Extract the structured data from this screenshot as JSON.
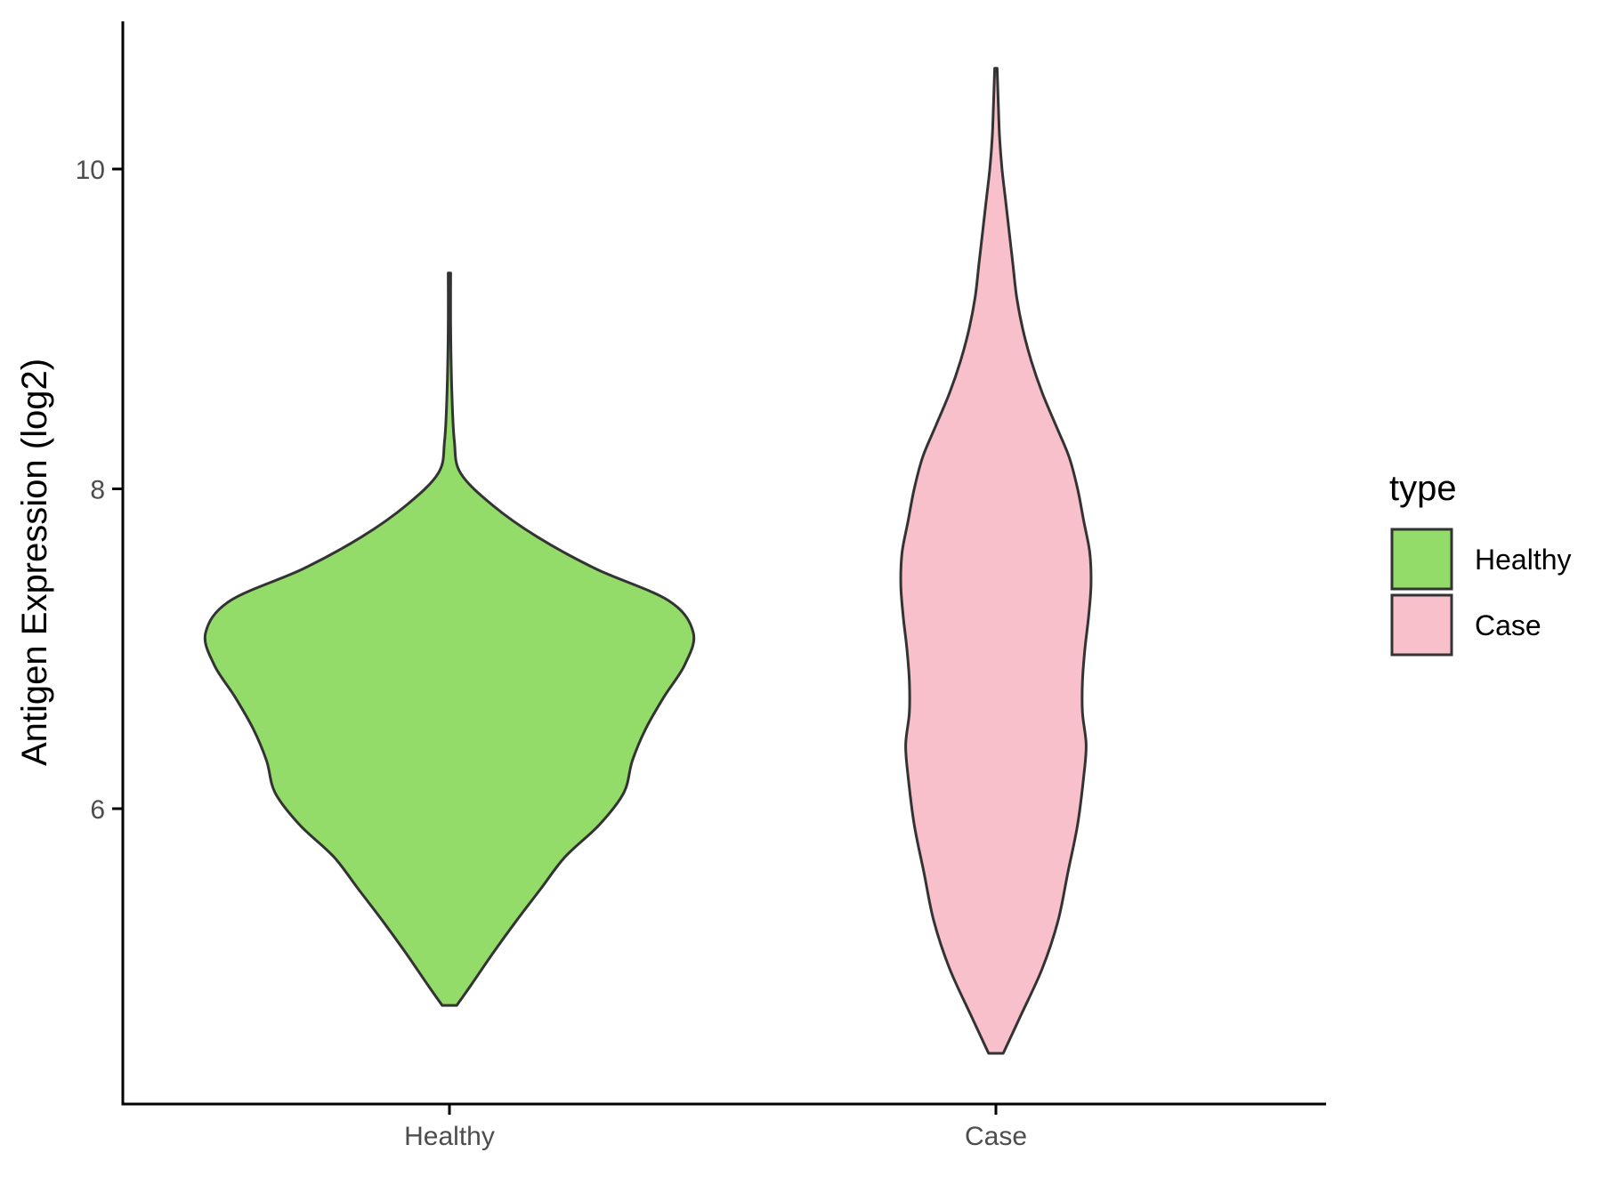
{
  "chart_data": {
    "type": "violin",
    "xlabel": "",
    "ylabel": "Antigen Expression (log2)",
    "categories": [
      "Healthy",
      "Case"
    ],
    "ylim": [
      4.2,
      10.95
    ],
    "yticks": [
      6,
      8,
      10
    ],
    "grid": false,
    "legend": {
      "title": "type",
      "position": "right",
      "entries": [
        "Healthy",
        "Case"
      ]
    },
    "colors": {
      "Healthy": "#93dc6a",
      "Case": "#f7c0cb",
      "outline": "#333333"
    },
    "series": [
      {
        "name": "Healthy",
        "density": [
          [
            4.77,
            0.06
          ],
          [
            4.9,
            0.18
          ],
          [
            5.1,
            0.36
          ],
          [
            5.3,
            0.55
          ],
          [
            5.5,
            0.75
          ],
          [
            5.7,
            0.95
          ],
          [
            5.9,
            1.23
          ],
          [
            6.1,
            1.43
          ],
          [
            6.3,
            1.5
          ],
          [
            6.5,
            1.61
          ],
          [
            6.7,
            1.76
          ],
          [
            6.9,
            1.93
          ],
          [
            7.1,
            2.0
          ],
          [
            7.3,
            1.8
          ],
          [
            7.5,
            1.2
          ],
          [
            7.7,
            0.72
          ],
          [
            7.9,
            0.35
          ],
          [
            8.1,
            0.09
          ],
          [
            8.3,
            0.04
          ],
          [
            8.6,
            0.02
          ],
          [
            9.0,
            0.01
          ],
          [
            9.35,
            0.01
          ]
        ]
      },
      {
        "name": "Case",
        "density": [
          [
            4.47,
            0.06
          ],
          [
            4.7,
            0.2
          ],
          [
            5.0,
            0.38
          ],
          [
            5.3,
            0.51
          ],
          [
            5.6,
            0.59
          ],
          [
            5.9,
            0.67
          ],
          [
            6.2,
            0.72
          ],
          [
            6.4,
            0.74
          ],
          [
            6.6,
            0.71
          ],
          [
            6.8,
            0.71
          ],
          [
            7.0,
            0.73
          ],
          [
            7.2,
            0.76
          ],
          [
            7.4,
            0.78
          ],
          [
            7.6,
            0.77
          ],
          [
            7.8,
            0.72
          ],
          [
            8.0,
            0.67
          ],
          [
            8.2,
            0.6
          ],
          [
            8.4,
            0.49
          ],
          [
            8.6,
            0.38
          ],
          [
            8.8,
            0.29
          ],
          [
            9.0,
            0.22
          ],
          [
            9.2,
            0.17
          ],
          [
            9.4,
            0.14
          ],
          [
            9.6,
            0.11
          ],
          [
            9.8,
            0.08
          ],
          [
            10.0,
            0.05
          ],
          [
            10.2,
            0.03
          ],
          [
            10.4,
            0.02
          ],
          [
            10.63,
            0.01
          ]
        ]
      }
    ]
  }
}
